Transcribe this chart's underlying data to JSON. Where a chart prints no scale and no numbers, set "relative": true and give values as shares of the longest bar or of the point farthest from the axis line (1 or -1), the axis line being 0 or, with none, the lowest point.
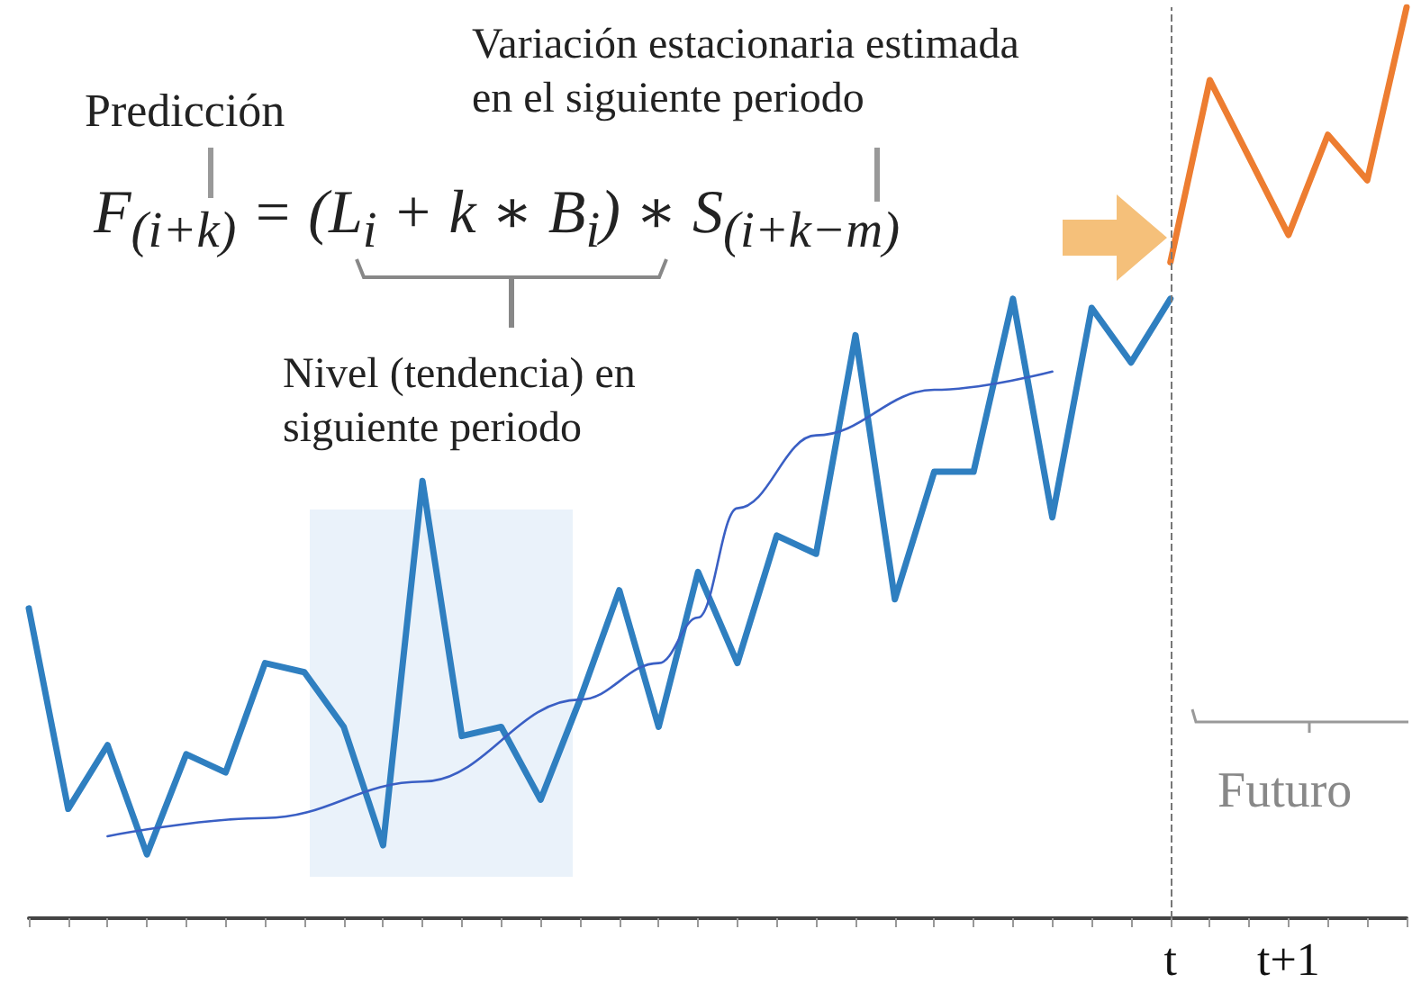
{
  "chart_data": {
    "type": "line",
    "relative": true,
    "tick_labels": "x",
    "grid": false,
    "marker": "none",
    "line_style": "solid",
    "categories": [
      null,
      null,
      null,
      null,
      null,
      null,
      null,
      null,
      null,
      null,
      null,
      null,
      null,
      null,
      null,
      null,
      null,
      null,
      null,
      null,
      null,
      null,
      null,
      null,
      null,
      null,
      null,
      null,
      null,
      "t",
      null,
      null,
      "t+1",
      null,
      null,
      null
    ],
    "series": [
      {
        "color": "#2f7fc0",
        "values": [
          0.34,
          0.12,
          0.19,
          0.07,
          0.18,
          0.16,
          0.28,
          0.27,
          0.21,
          0.08,
          0.48,
          0.2,
          0.21,
          0.13,
          0.24,
          0.36,
          0.21,
          0.38,
          0.28,
          0.42,
          0.4,
          0.64,
          0.35,
          0.49,
          0.49,
          0.68,
          0.44,
          0.67,
          0.61,
          0.68,
          null,
          null,
          null,
          null,
          null,
          null
        ]
      },
      {
        "color": "#ed7d31",
        "values": [
          null,
          null,
          null,
          null,
          null,
          null,
          null,
          null,
          null,
          null,
          null,
          null,
          null,
          null,
          null,
          null,
          null,
          null,
          null,
          null,
          null,
          null,
          null,
          null,
          null,
          null,
          null,
          null,
          null,
          0.72,
          0.92,
          null,
          0.75,
          0.86,
          0.81,
          1
        ]
      },
      {
        "color": "#3a5fc4",
        "values": [
          null,
          null,
          0.09,
          null,
          null,
          null,
          0.11,
          null,
          null,
          null,
          0.15,
          null,
          null,
          null,
          0.24,
          null,
          0.28,
          0.33,
          0.45,
          null,
          0.53,
          null,
          null,
          0.58,
          null,
          null,
          0.6,
          null,
          null,
          null,
          null,
          null,
          null,
          null,
          null,
          null
        ]
      }
    ],
    "ref_lines": [
      {
        "axis": "x",
        "value": "t",
        "color": "#777777",
        "line_style": "dashed"
      }
    ],
    "annotations": [
      "Variación estacionaria estimada\nen el siguiente periodo",
      "Predicción",
      "F$_{(i+k)}$ = (L$_{i}$ + k ∗ B$_{i}$) ∗ S$_{(i+k−m)}$",
      "Nivel (tendencia) en\nsiguiente periodo",
      "Futuro"
    ]
  }
}
